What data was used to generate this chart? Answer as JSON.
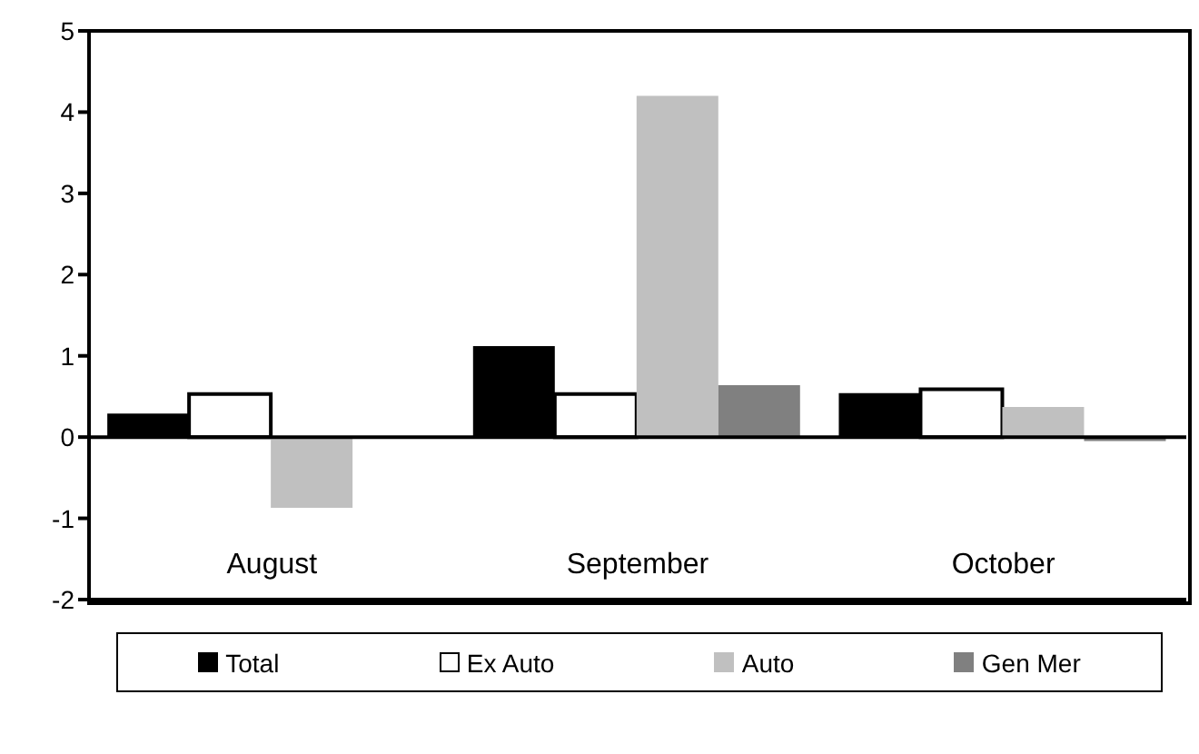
{
  "chart_data": {
    "type": "bar",
    "categories": [
      "August",
      "September",
      "October"
    ],
    "series": [
      {
        "name": "Total",
        "color": "#000000",
        "values": [
          0.29,
          1.12,
          0.54
        ]
      },
      {
        "name": "Ex Auto",
        "color": "#ffffff",
        "values": [
          0.53,
          0.53,
          0.59
        ]
      },
      {
        "name": "Auto",
        "color": "#c0c0c0",
        "values": [
          -0.87,
          4.2,
          0.37
        ]
      },
      {
        "name": "Gen Mer",
        "color": "#808080",
        "values": [
          null,
          0.64,
          -0.05
        ]
      }
    ],
    "ylim": [
      -2,
      5
    ],
    "yticks": [
      -2,
      -1,
      0,
      1,
      2,
      3,
      4,
      5
    ],
    "legend": "bottom"
  }
}
